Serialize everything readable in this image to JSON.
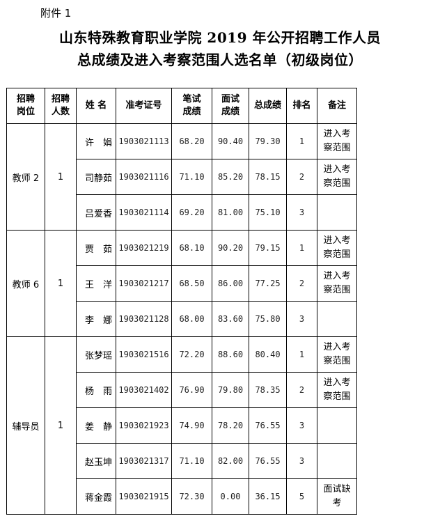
{
  "attachment_label": "附件 1",
  "title_line1": "山东特殊教育职业学院 2019 年公开招聘工作人员",
  "title_line2": "总成绩及进入考察范围人选名单（初级岗位）",
  "table": {
    "headers": [
      "招聘\n岗位",
      "招聘\n人数",
      "姓  名",
      "准考证号",
      "笔试\n成绩",
      "面试\n成绩",
      "总成绩",
      "排名",
      "备注"
    ],
    "groups": [
      {
        "position": "教师 2",
        "count": "1",
        "rows": [
          {
            "name": "许　娟",
            "id": "1903021113",
            "written": "68.20",
            "interview": "90.40",
            "total": "79.30",
            "rank": "1",
            "note": "进入考察范围"
          },
          {
            "name": "司静茹",
            "id": "1903021116",
            "written": "71.10",
            "interview": "85.20",
            "total": "78.15",
            "rank": "2",
            "note": "进入考察范围"
          },
          {
            "name": "吕爱香",
            "id": "1903021114",
            "written": "69.20",
            "interview": "81.00",
            "total": "75.10",
            "rank": "3",
            "note": ""
          }
        ]
      },
      {
        "position": "教师 6",
        "count": "1",
        "rows": [
          {
            "name": "贾　茹",
            "id": "1903021219",
            "written": "68.10",
            "interview": "90.20",
            "total": "79.15",
            "rank": "1",
            "note": "进入考察范围"
          },
          {
            "name": "王　洋",
            "id": "1903021217",
            "written": "68.50",
            "interview": "86.00",
            "total": "77.25",
            "rank": "2",
            "note": "进入考察范围"
          },
          {
            "name": "李　娜",
            "id": "1903021128",
            "written": "68.00",
            "interview": "83.60",
            "total": "75.80",
            "rank": "3",
            "note": ""
          }
        ]
      },
      {
        "position": "辅导员",
        "count": "1",
        "rows": [
          {
            "name": "张梦瑶",
            "id": "1903021516",
            "written": "72.20",
            "interview": "88.60",
            "total": "80.40",
            "rank": "1",
            "note": "进入考察范围"
          },
          {
            "name": "杨　雨",
            "id": "1903021402",
            "written": "76.90",
            "interview": "79.80",
            "total": "78.35",
            "rank": "2",
            "note": "进入考察范围"
          },
          {
            "name": "姜　静",
            "id": "1903021923",
            "written": "74.90",
            "interview": "78.20",
            "total": "76.55",
            "rank": "3",
            "note": ""
          },
          {
            "name": "赵玉坤",
            "id": "1903021317",
            "written": "71.10",
            "interview": "82.00",
            "total": "76.55",
            "rank": "3",
            "note": ""
          },
          {
            "name": "蒋金霞",
            "id": "1903021915",
            "written": "72.30",
            "interview": "0.00",
            "total": "36.15",
            "rank": "5",
            "note": "面试缺考"
          }
        ]
      }
    ]
  }
}
